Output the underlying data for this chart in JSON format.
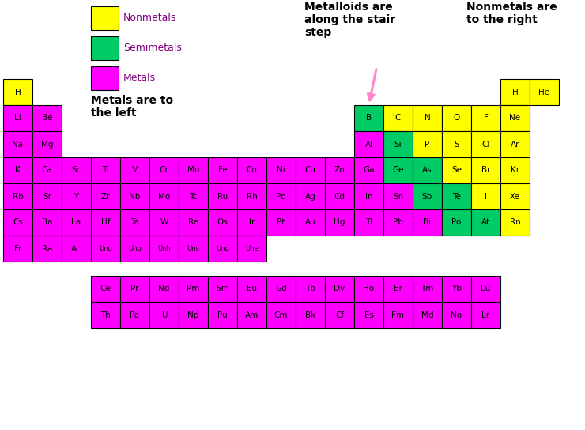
{
  "bg_color": "#ffffff",
  "yellow": "#ffff00",
  "green": "#00cc66",
  "magenta": "#ff00ff",
  "text_color": "#000000",
  "border_color": "#000000",
  "periodic_table": [
    {
      "symbol": "H",
      "row": 0,
      "col": 0,
      "type": "yellow"
    },
    {
      "symbol": "H",
      "row": 0,
      "col": 17,
      "type": "yellow"
    },
    {
      "symbol": "He",
      "row": 0,
      "col": 18,
      "type": "yellow"
    },
    {
      "symbol": "Li",
      "row": 1,
      "col": 0,
      "type": "magenta"
    },
    {
      "symbol": "Be",
      "row": 1,
      "col": 1,
      "type": "magenta"
    },
    {
      "symbol": "B",
      "row": 1,
      "col": 12,
      "type": "green"
    },
    {
      "symbol": "C",
      "row": 1,
      "col": 13,
      "type": "yellow"
    },
    {
      "symbol": "N",
      "row": 1,
      "col": 14,
      "type": "yellow"
    },
    {
      "symbol": "O",
      "row": 1,
      "col": 15,
      "type": "yellow"
    },
    {
      "symbol": "F",
      "row": 1,
      "col": 16,
      "type": "yellow"
    },
    {
      "symbol": "Ne",
      "row": 1,
      "col": 17,
      "type": "yellow"
    },
    {
      "symbol": "Na",
      "row": 2,
      "col": 0,
      "type": "magenta"
    },
    {
      "symbol": "Mg",
      "row": 2,
      "col": 1,
      "type": "magenta"
    },
    {
      "symbol": "Al",
      "row": 2,
      "col": 12,
      "type": "magenta"
    },
    {
      "symbol": "Si",
      "row": 2,
      "col": 13,
      "type": "green"
    },
    {
      "symbol": "P",
      "row": 2,
      "col": 14,
      "type": "yellow"
    },
    {
      "symbol": "S",
      "row": 2,
      "col": 15,
      "type": "yellow"
    },
    {
      "symbol": "Cl",
      "row": 2,
      "col": 16,
      "type": "yellow"
    },
    {
      "symbol": "Ar",
      "row": 2,
      "col": 17,
      "type": "yellow"
    },
    {
      "symbol": "K",
      "row": 3,
      "col": 0,
      "type": "magenta"
    },
    {
      "symbol": "Ca",
      "row": 3,
      "col": 1,
      "type": "magenta"
    },
    {
      "symbol": "Sc",
      "row": 3,
      "col": 2,
      "type": "magenta"
    },
    {
      "symbol": "Ti",
      "row": 3,
      "col": 3,
      "type": "magenta"
    },
    {
      "symbol": "V",
      "row": 3,
      "col": 4,
      "type": "magenta"
    },
    {
      "symbol": "Cr",
      "row": 3,
      "col": 5,
      "type": "magenta"
    },
    {
      "symbol": "Mn",
      "row": 3,
      "col": 6,
      "type": "magenta"
    },
    {
      "symbol": "Fe",
      "row": 3,
      "col": 7,
      "type": "magenta"
    },
    {
      "symbol": "Co",
      "row": 3,
      "col": 8,
      "type": "magenta"
    },
    {
      "symbol": "Ni",
      "row": 3,
      "col": 9,
      "type": "magenta"
    },
    {
      "symbol": "Cu",
      "row": 3,
      "col": 10,
      "type": "magenta"
    },
    {
      "symbol": "Zn",
      "row": 3,
      "col": 11,
      "type": "magenta"
    },
    {
      "symbol": "Ga",
      "row": 3,
      "col": 12,
      "type": "magenta"
    },
    {
      "symbol": "Ge",
      "row": 3,
      "col": 13,
      "type": "green"
    },
    {
      "symbol": "As",
      "row": 3,
      "col": 14,
      "type": "green"
    },
    {
      "symbol": "Se",
      "row": 3,
      "col": 15,
      "type": "yellow"
    },
    {
      "symbol": "Br",
      "row": 3,
      "col": 16,
      "type": "yellow"
    },
    {
      "symbol": "Kr",
      "row": 3,
      "col": 17,
      "type": "yellow"
    },
    {
      "symbol": "Rb",
      "row": 4,
      "col": 0,
      "type": "magenta"
    },
    {
      "symbol": "Sr",
      "row": 4,
      "col": 1,
      "type": "magenta"
    },
    {
      "symbol": "Y",
      "row": 4,
      "col": 2,
      "type": "magenta"
    },
    {
      "symbol": "Zr",
      "row": 4,
      "col": 3,
      "type": "magenta"
    },
    {
      "symbol": "Nb",
      "row": 4,
      "col": 4,
      "type": "magenta"
    },
    {
      "symbol": "Mo",
      "row": 4,
      "col": 5,
      "type": "magenta"
    },
    {
      "symbol": "Tc",
      "row": 4,
      "col": 6,
      "type": "magenta"
    },
    {
      "symbol": "Ru",
      "row": 4,
      "col": 7,
      "type": "magenta"
    },
    {
      "symbol": "Rh",
      "row": 4,
      "col": 8,
      "type": "magenta"
    },
    {
      "symbol": "Pd",
      "row": 4,
      "col": 9,
      "type": "magenta"
    },
    {
      "symbol": "Ag",
      "row": 4,
      "col": 10,
      "type": "magenta"
    },
    {
      "symbol": "Cd",
      "row": 4,
      "col": 11,
      "type": "magenta"
    },
    {
      "symbol": "In",
      "row": 4,
      "col": 12,
      "type": "magenta"
    },
    {
      "symbol": "Sn",
      "row": 4,
      "col": 13,
      "type": "magenta"
    },
    {
      "symbol": "Sb",
      "row": 4,
      "col": 14,
      "type": "green"
    },
    {
      "symbol": "Te",
      "row": 4,
      "col": 15,
      "type": "green"
    },
    {
      "symbol": "I",
      "row": 4,
      "col": 16,
      "type": "yellow"
    },
    {
      "symbol": "Xe",
      "row": 4,
      "col": 17,
      "type": "yellow"
    },
    {
      "symbol": "Cs",
      "row": 5,
      "col": 0,
      "type": "magenta"
    },
    {
      "symbol": "Ba",
      "row": 5,
      "col": 1,
      "type": "magenta"
    },
    {
      "symbol": "La",
      "row": 5,
      "col": 2,
      "type": "magenta"
    },
    {
      "symbol": "Hf",
      "row": 5,
      "col": 3,
      "type": "magenta"
    },
    {
      "symbol": "Ta",
      "row": 5,
      "col": 4,
      "type": "magenta"
    },
    {
      "symbol": "W",
      "row": 5,
      "col": 5,
      "type": "magenta"
    },
    {
      "symbol": "Re",
      "row": 5,
      "col": 6,
      "type": "magenta"
    },
    {
      "symbol": "Os",
      "row": 5,
      "col": 7,
      "type": "magenta"
    },
    {
      "symbol": "Ir",
      "row": 5,
      "col": 8,
      "type": "magenta"
    },
    {
      "symbol": "Pt",
      "row": 5,
      "col": 9,
      "type": "magenta"
    },
    {
      "symbol": "Au",
      "row": 5,
      "col": 10,
      "type": "magenta"
    },
    {
      "symbol": "Hg",
      "row": 5,
      "col": 11,
      "type": "magenta"
    },
    {
      "symbol": "Tl",
      "row": 5,
      "col": 12,
      "type": "magenta"
    },
    {
      "symbol": "Pb",
      "row": 5,
      "col": 13,
      "type": "magenta"
    },
    {
      "symbol": "Bi",
      "row": 5,
      "col": 14,
      "type": "magenta"
    },
    {
      "symbol": "Po",
      "row": 5,
      "col": 15,
      "type": "green"
    },
    {
      "symbol": "At",
      "row": 5,
      "col": 16,
      "type": "green"
    },
    {
      "symbol": "Rn",
      "row": 5,
      "col": 17,
      "type": "yellow"
    },
    {
      "symbol": "Fr",
      "row": 6,
      "col": 0,
      "type": "magenta"
    },
    {
      "symbol": "Ra",
      "row": 6,
      "col": 1,
      "type": "magenta"
    },
    {
      "symbol": "Ac",
      "row": 6,
      "col": 2,
      "type": "magenta"
    },
    {
      "symbol": "Unq",
      "row": 6,
      "col": 3,
      "type": "magenta"
    },
    {
      "symbol": "Unp",
      "row": 6,
      "col": 4,
      "type": "magenta"
    },
    {
      "symbol": "Unh",
      "row": 6,
      "col": 5,
      "type": "magenta"
    },
    {
      "symbol": "Uns",
      "row": 6,
      "col": 6,
      "type": "magenta"
    },
    {
      "symbol": "Uno",
      "row": 6,
      "col": 7,
      "type": "magenta"
    },
    {
      "symbol": "Une",
      "row": 6,
      "col": 8,
      "type": "magenta"
    }
  ],
  "lanthanides": [
    "Ce",
    "Pr",
    "Nd",
    "Pm",
    "Sm",
    "Eu",
    "Gd",
    "Tb",
    "Dy",
    "Ho",
    "Er",
    "Tm",
    "Yb",
    "Lu"
  ],
  "actinides": [
    "Th",
    "Pa",
    "U",
    "Np",
    "Pu",
    "Am",
    "Cm",
    "Bk",
    "Cf",
    "Es",
    "Fm",
    "Md",
    "No",
    "Lr"
  ]
}
